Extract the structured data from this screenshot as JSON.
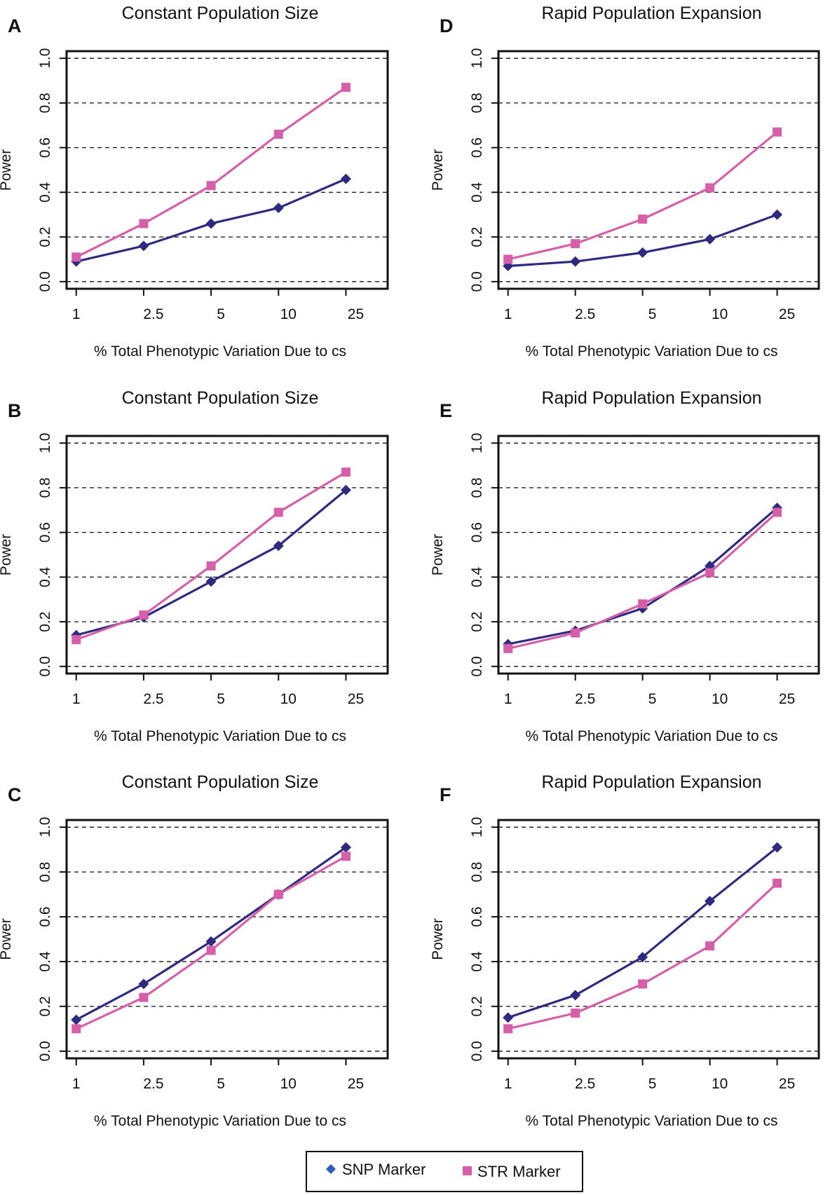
{
  "colors": {
    "snp": "#2e2a7f",
    "str": "#d55fa8",
    "snp_legend_marker": "#2f5fb5"
  },
  "legend": {
    "snp_label": "SNP Marker",
    "str_label": "STR Marker",
    "snp_marker": "diamond-icon",
    "str_marker": "square-icon"
  },
  "chart_data": [
    {
      "panel": "A",
      "type": "line",
      "title": "Constant Population Size",
      "xlabel": "% Total Phenotypic Variation Due to cs",
      "ylabel": "Power",
      "categories": [
        "1",
        "2.5",
        "5",
        "10",
        "25"
      ],
      "yticks": [
        "0.0",
        "0.2",
        "0.4",
        "0.6",
        "0.8",
        "1.0"
      ],
      "ylim": [
        0,
        1
      ],
      "grid": "horizontal-dashed",
      "series": [
        {
          "name": "SNP Marker",
          "values": [
            0.09,
            0.16,
            0.26,
            0.33,
            0.46
          ]
        },
        {
          "name": "STR Marker",
          "values": [
            0.11,
            0.26,
            0.43,
            0.66,
            0.87
          ]
        }
      ]
    },
    {
      "panel": "B",
      "type": "line",
      "title": "Constant Population Size",
      "xlabel": "% Total Phenotypic Variation Due to cs",
      "ylabel": "Power",
      "categories": [
        "1",
        "2.5",
        "5",
        "10",
        "25"
      ],
      "yticks": [
        "0.0",
        "0.2",
        "0.4",
        "0.6",
        "0.8",
        "1.0"
      ],
      "ylim": [
        0,
        1
      ],
      "grid": "horizontal-dashed",
      "series": [
        {
          "name": "SNP Marker",
          "values": [
            0.14,
            0.22,
            0.38,
            0.54,
            0.79
          ]
        },
        {
          "name": "STR Marker",
          "values": [
            0.12,
            0.23,
            0.45,
            0.69,
            0.87
          ]
        }
      ]
    },
    {
      "panel": "C",
      "type": "line",
      "title": "Constant Population Size",
      "xlabel": "% Total Phenotypic Variation Due to cs",
      "ylabel": "Power",
      "categories": [
        "1",
        "2.5",
        "5",
        "10",
        "25"
      ],
      "yticks": [
        "0.0",
        "0.2",
        "0.4",
        "0.6",
        "0.8",
        "1.0"
      ],
      "ylim": [
        0,
        1
      ],
      "grid": "horizontal-dashed",
      "series": [
        {
          "name": "SNP Marker",
          "values": [
            0.14,
            0.3,
            0.49,
            0.7,
            0.91
          ]
        },
        {
          "name": "STR Marker",
          "values": [
            0.1,
            0.24,
            0.45,
            0.7,
            0.87
          ]
        }
      ]
    },
    {
      "panel": "D",
      "type": "line",
      "title": "Rapid Population Expansion",
      "xlabel": "% Total Phenotypic Variation Due to cs",
      "ylabel": "Power",
      "categories": [
        "1",
        "2.5",
        "5",
        "10",
        "25"
      ],
      "yticks": [
        "0.0",
        "0.2",
        "0.4",
        "0.6",
        "0.8",
        "1.0"
      ],
      "ylim": [
        0,
        1
      ],
      "grid": "horizontal-dashed",
      "series": [
        {
          "name": "SNP Marker",
          "values": [
            0.07,
            0.09,
            0.13,
            0.19,
            0.3
          ]
        },
        {
          "name": "STR Marker",
          "values": [
            0.1,
            0.17,
            0.28,
            0.42,
            0.67
          ]
        }
      ]
    },
    {
      "panel": "E",
      "type": "line",
      "title": "Rapid Population Expansion",
      "xlabel": "% Total Phenotypic Variation Due to cs",
      "ylabel": "Power",
      "categories": [
        "1",
        "2.5",
        "5",
        "10",
        "25"
      ],
      "yticks": [
        "0.0",
        "0.2",
        "0.4",
        "0.6",
        "0.8",
        "1.0"
      ],
      "ylim": [
        0,
        1
      ],
      "grid": "horizontal-dashed",
      "series": [
        {
          "name": "SNP Marker",
          "values": [
            0.1,
            0.16,
            0.26,
            0.45,
            0.71
          ]
        },
        {
          "name": "STR Marker",
          "values": [
            0.08,
            0.15,
            0.28,
            0.42,
            0.69
          ]
        }
      ]
    },
    {
      "panel": "F",
      "type": "line",
      "title": "Rapid Population Expansion",
      "xlabel": "% Total Phenotypic Variation Due to cs",
      "ylabel": "Power",
      "categories": [
        "1",
        "2.5",
        "5",
        "10",
        "25"
      ],
      "yticks": [
        "0.0",
        "0.2",
        "0.4",
        "0.6",
        "0.8",
        "1.0"
      ],
      "ylim": [
        0,
        1
      ],
      "grid": "horizontal-dashed",
      "series": [
        {
          "name": "SNP Marker",
          "values": [
            0.15,
            0.25,
            0.42,
            0.67,
            0.91
          ]
        },
        {
          "name": "STR Marker",
          "values": [
            0.1,
            0.17,
            0.3,
            0.47,
            0.75
          ]
        }
      ]
    }
  ]
}
